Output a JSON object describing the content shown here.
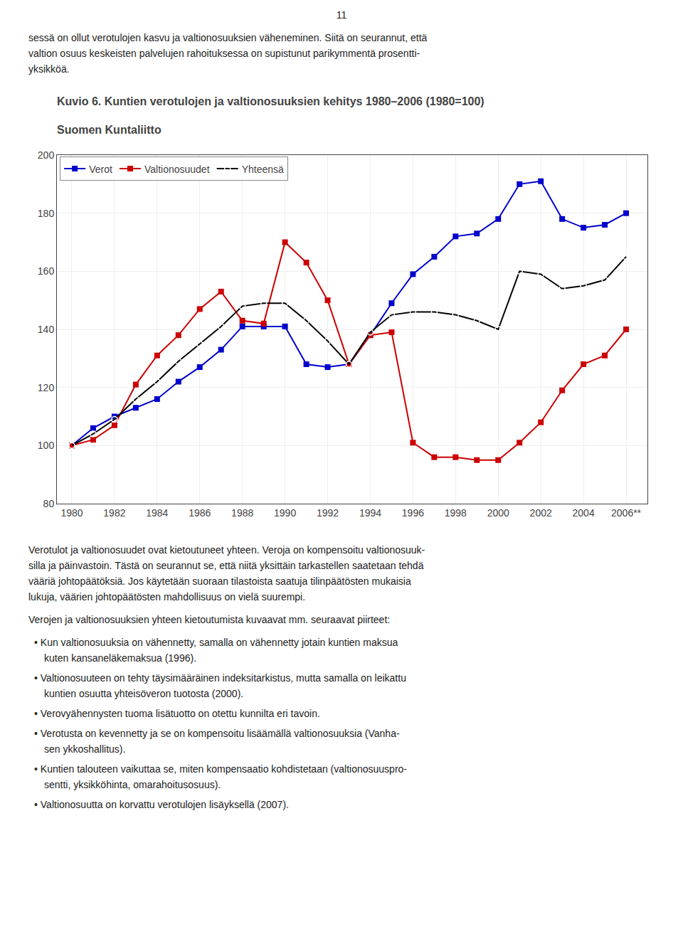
{
  "chart_data": {
    "type": "line",
    "title": "Kuvio 6. Kuntien verotulojen ja valtionosuuksien kehitys 1980–2006 (1980=100)",
    "subtitle": "Suomen Kuntaliitto",
    "x": [
      1980,
      1981,
      1982,
      1983,
      1984,
      1985,
      1986,
      1987,
      1988,
      1989,
      1990,
      1991,
      1992,
      1993,
      1994,
      1995,
      1996,
      1997,
      1998,
      1999,
      2000,
      2001,
      2002,
      2003,
      2004,
      2005,
      2006
    ],
    "series": [
      {
        "name": "Verot",
        "color": "#0000cc",
        "marker": "square",
        "values": [
          100,
          106,
          110,
          113,
          116,
          122,
          127,
          133,
          141,
          141,
          141,
          128,
          127,
          128,
          138,
          149,
          159,
          165,
          172,
          173,
          178,
          190,
          191,
          178,
          175,
          176,
          180
        ]
      },
      {
        "name": "Valtionosuudet",
        "color": "#cc0000",
        "marker": "square",
        "values": [
          100,
          102,
          107,
          121,
          131,
          138,
          147,
          153,
          143,
          142,
          170,
          163,
          150,
          128,
          138,
          139,
          101,
          96,
          96,
          95,
          95,
          101,
          108,
          119,
          128,
          131,
          140
        ]
      },
      {
        "name": "Yhteensä",
        "color": "#000000",
        "marker": "circle-open",
        "values": [
          100,
          104,
          109,
          116,
          122,
          129,
          135,
          141,
          148,
          149,
          149,
          143,
          136,
          128,
          139,
          145,
          146,
          146,
          145,
          143,
          140,
          160,
          159,
          154,
          155,
          157,
          165
        ]
      }
    ],
    "xlim": [
      1979.3,
      2007.0
    ],
    "xticks": [
      1980,
      1982,
      1984,
      1986,
      1988,
      1990,
      1992,
      1994,
      1996,
      1998,
      2000,
      2002,
      2004,
      {
        "value": 2006,
        "label": "2006**"
      }
    ],
    "ylim": [
      80,
      200
    ],
    "yticks": [
      80,
      100,
      120,
      140,
      160,
      180,
      200
    ],
    "grid": true,
    "legend": "upper left",
    "annotations": [
      [
        "11"
      ],
      [
        "sessä on ollut verotulojen kasvu ja valtionosuuksien väheneminen. Siitä on seurannut, että",
        "valtion osuus keskeisten palvelujen rahoituksessa on supistunut parikymmentä prosentti-",
        "yksikköä."
      ],
      [
        "Verotulot ja valtionosuudet ovat kietoutuneet yhteen. Veroja on kompensoitu valtionosuuk-",
        "silla ja päinvastoin. Tästä on seurannut se, että niitä yksittäin tarkastellen saatetaan tehdä",
        "vääriä johtopäätöksiä. Jos käytetään suoraan tilastoista saatuja tilinpäätösten mukaisia",
        "lukuja, väärien johtopäätösten mahdollisuus on vielä suurempi."
      ],
      [
        "Verojen ja valtionosuuksien yhteen kietoutumista kuvaavat mm. seuraavat piirteet:"
      ],
      [
        "• Kun valtionosuuksia on vähennetty, samalla on vähennetty jotain kuntien maksua",
        "kuten kansaneläkemaksua (1996)."
      ],
      [
        "• Valtionosuuteen on tehty täysimääräinen indeksitarkistus, mutta samalla on leikattu",
        "kuntien osuutta yhteisöveron tuotosta (2000)."
      ],
      [
        "• Verovyähennysten tuoma lisätuotto on otettu kunnilta eri tavoin."
      ],
      [
        "• Verotusta on kevennetty ja se on kompensoitu lisäämällä valtionosuuksia (Vanha-",
        "sen ykkoshallitus)."
      ],
      [
        "• Kuntien talouteen vaikuttaa se, miten kompensaatio kohdistetaan (valtionosuuspro-",
        "sentti, yksikköhinta, omarahoitusosuus)."
      ],
      [
        "• Valtionosuutta on korvattu verotulojen lisäyksellä (2007)."
      ]
    ]
  }
}
